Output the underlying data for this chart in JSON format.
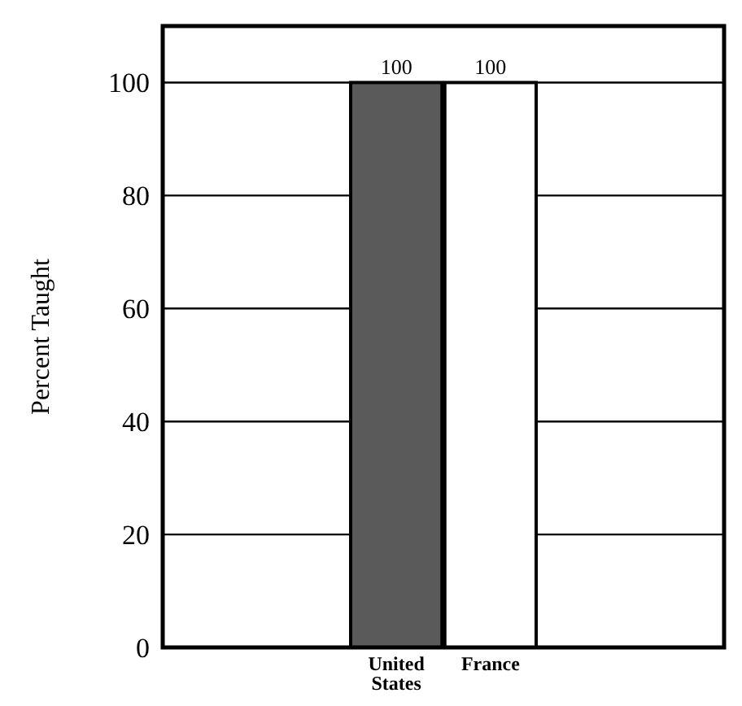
{
  "chart_data": {
    "type": "bar",
    "ylabel": "Percent Taught",
    "categories": [
      "United States",
      "France"
    ],
    "values": [
      100,
      100
    ],
    "colors": [
      "#5a5a5a",
      "#ffffff"
    ],
    "ylim": [
      0,
      110
    ],
    "yticks": [
      0,
      20,
      40,
      60,
      80,
      100
    ],
    "grid": "y",
    "data_labels": true
  }
}
